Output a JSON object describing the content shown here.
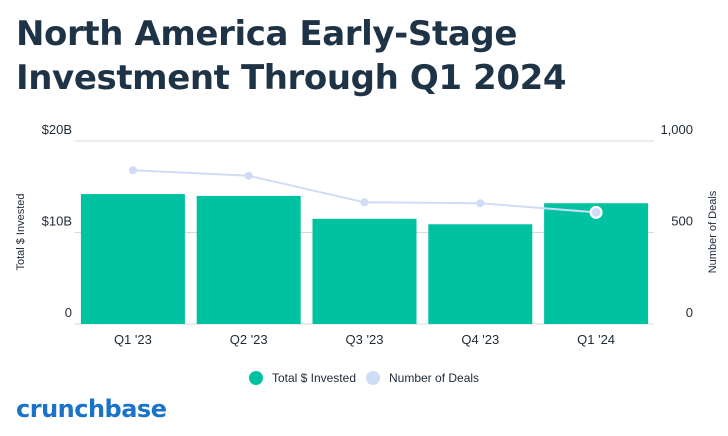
{
  "title": "North America Early-Stage Investment Through Q1 2024",
  "brand": "crunchbase",
  "colors": {
    "bar": "#00c2a0",
    "line": "#cfdcf6",
    "grid": "#d5d8dd",
    "title": "#1f3347",
    "brand": "#1a73c8"
  },
  "legend": {
    "invested_label": "Total $ Invested",
    "deals_label": "Number of Deals"
  },
  "chart_data": {
    "type": "bar",
    "categories": [
      "Q1 '23",
      "Q2 '23",
      "Q3 '23",
      "Q4 '23",
      "Q1 '24"
    ],
    "series": [
      {
        "name": "Total $ Invested",
        "type": "bar",
        "axis": "left",
        "values": [
          14.2,
          14.0,
          11.5,
          10.9,
          13.2
        ]
      },
      {
        "name": "Number of Deals",
        "type": "line",
        "axis": "right",
        "values": [
          840,
          810,
          665,
          660,
          610
        ]
      }
    ],
    "ylabel": "Total $ Invested",
    "y2label": "Number of Deals",
    "ylim": [
      0,
      20
    ],
    "y2lim": [
      0,
      1000
    ],
    "yticks": [
      "0",
      "$10B",
      "$20B"
    ],
    "y2ticks": [
      "0",
      "500",
      "1,000"
    ],
    "grid": true,
    "legend_position": "bottom"
  }
}
